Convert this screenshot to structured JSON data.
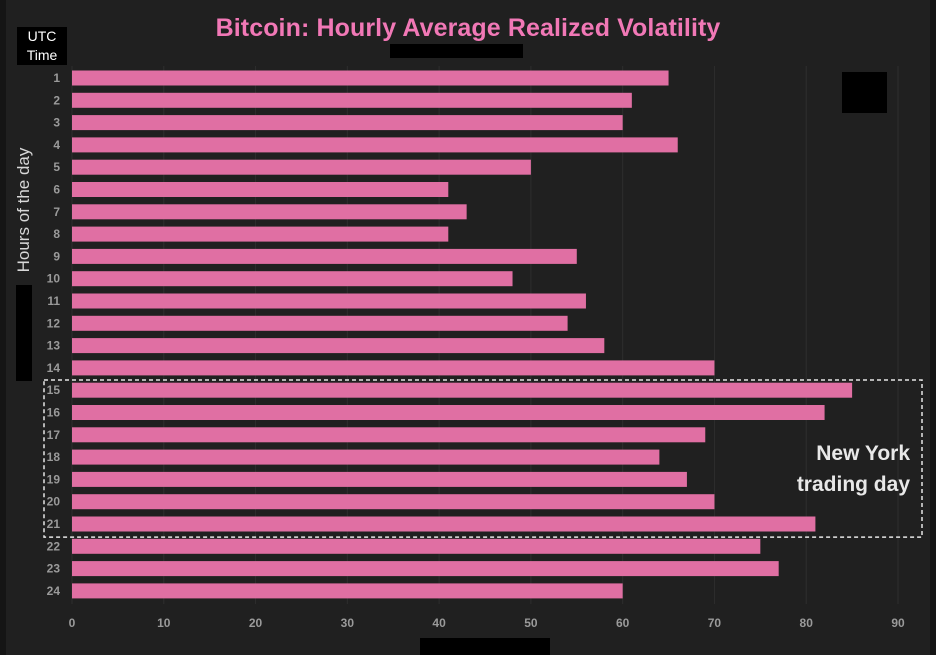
{
  "title": "Bitcoin: Hourly Average Realized Volatility",
  "utc_label": "UTC Time",
  "ylabel": "Hours of the day",
  "annotation": "New York trading day",
  "colors": {
    "bar": "#e06fa3",
    "title": "#f178b6",
    "background": "#202020",
    "grid": "#2e2e2e",
    "tick": "#9a9a9a"
  },
  "chart_data": {
    "type": "bar",
    "orientation": "horizontal",
    "title": "Bitcoin: Hourly Average Realized Volatility",
    "ylabel": "Hours of the day",
    "xlabel": "",
    "xlim": [
      0,
      90
    ],
    "xticks": [
      0,
      10,
      20,
      30,
      40,
      50,
      60,
      70,
      80,
      90
    ],
    "categories": [
      "1",
      "2",
      "3",
      "4",
      "5",
      "6",
      "7",
      "8",
      "9",
      "10",
      "11",
      "12",
      "13",
      "14",
      "15",
      "16",
      "17",
      "18",
      "19",
      "20",
      "21",
      "22",
      "23",
      "24"
    ],
    "values": [
      65,
      61,
      60,
      66,
      50,
      41,
      43,
      41,
      55,
      48,
      56,
      54,
      58,
      70,
      85,
      82,
      69,
      64,
      67,
      70,
      81,
      75,
      77,
      60
    ],
    "grid": true,
    "highlight": {
      "from": "15",
      "to": "21",
      "label": "New York trading day"
    }
  }
}
